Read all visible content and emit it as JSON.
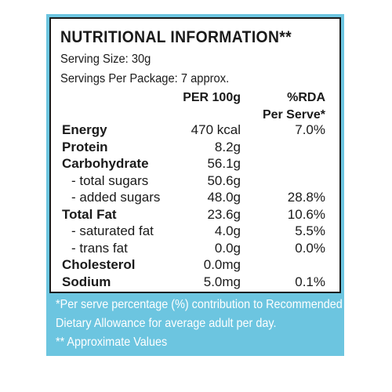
{
  "label": {
    "title": "NUTRITIONAL INFORMATION**",
    "serving_size": "Serving Size: 30g",
    "servings_per_package": "Servings Per Package: 7 approx.",
    "columns": {
      "per100": "PER 100g",
      "rda_line1": "%RDA",
      "rda_line2": "Per Serve*"
    },
    "rows": [
      {
        "name": "Energy",
        "per100": "470 kcal",
        "rda": "7.0%"
      },
      {
        "name": "Protein",
        "per100": "8.2g",
        "rda": ""
      },
      {
        "name": "Carbohydrate",
        "per100": "56.1g",
        "rda": ""
      },
      {
        "name": "- total sugars",
        "per100": "50.6g",
        "rda": ""
      },
      {
        "name": "- added sugars",
        "per100": "48.0g",
        "rda": "28.8%"
      },
      {
        "name": "Total Fat",
        "per100": "23.6g",
        "rda": "10.6%"
      },
      {
        "name": "- saturated fat",
        "per100": "4.0g",
        "rda": "5.5%"
      },
      {
        "name": "- trans fat",
        "per100": "0.0g",
        "rda": "0.0%"
      },
      {
        "name": "Cholesterol",
        "per100": "0.0mg",
        "rda": ""
      },
      {
        "name": "Sodium",
        "per100": "5.0mg",
        "rda": "0.1%"
      }
    ],
    "footnotes": {
      "line1": "*Per serve percentage (%) contribution to Recommended",
      "line2": "Dietary Allowance for average adult per day.",
      "line3": "** Approximate Values"
    },
    "colors": {
      "frame": "#6cc5e0",
      "text": "#1a1a1a",
      "footnote_text": "#ffffff"
    }
  }
}
